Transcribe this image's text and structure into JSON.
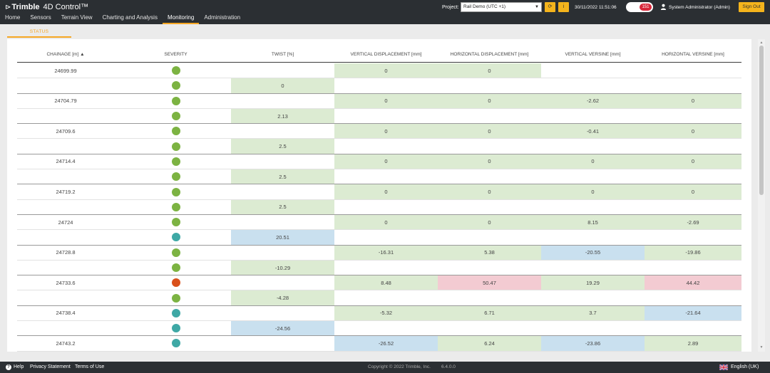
{
  "app": {
    "logo_mark": "⊳",
    "brand": "Trimble",
    "product": "4D Control™"
  },
  "nav": [
    {
      "label": "Home",
      "active": false
    },
    {
      "label": "Sensors",
      "active": false
    },
    {
      "label": "Terrain View",
      "active": false
    },
    {
      "label": "Charting and Analysis",
      "active": false
    },
    {
      "label": "Monitoring",
      "active": true
    },
    {
      "label": "Administration",
      "active": false
    }
  ],
  "header": {
    "project_label": "Project:",
    "project_value": "Rail Demo (UTC +1)",
    "refresh_icon": "⟳",
    "info_icon": "i",
    "datetime": "30/11/2022 11:51:06",
    "alarm_count": "151",
    "user_name": "System Administrator (Admin)",
    "signout_label": "Sign Out"
  },
  "subtab": {
    "label": "STATUS"
  },
  "table": {
    "columns": [
      "CHAINAGE [m] ▲",
      "SEVERITY",
      "TWIST [%]",
      "VERTICAL DISPLACEMENT [mm]",
      "HORIZONTAL DISPLACEMENT [mm]",
      "VERTICAL VERSINE [mm]",
      "HORIZONTAL VERSINE [mm]"
    ],
    "rows": [
      {
        "chainage": "24699.99",
        "severity": "green",
        "twist": "",
        "vd": "0",
        "vd_c": "g",
        "hd": "0",
        "hd_c": "g",
        "vv": "",
        "vv_c": "",
        "hv": "",
        "hv_c": ""
      },
      {
        "chainage": "",
        "severity": "green",
        "twist": "0",
        "twist_c": "g",
        "vd": "",
        "hd": "",
        "vv": "",
        "hv": ""
      },
      {
        "chainage": "24704.79",
        "severity": "green",
        "twist": "",
        "vd": "0",
        "vd_c": "g",
        "hd": "0",
        "hd_c": "g",
        "vv": "-2.62",
        "vv_c": "g",
        "hv": "0",
        "hv_c": "g"
      },
      {
        "chainage": "",
        "severity": "green",
        "twist": "2.13",
        "twist_c": "g",
        "vd": "",
        "hd": "",
        "vv": "",
        "hv": ""
      },
      {
        "chainage": "24709.6",
        "severity": "green",
        "twist": "",
        "vd": "0",
        "vd_c": "g",
        "hd": "0",
        "hd_c": "g",
        "vv": "-0.41",
        "vv_c": "g",
        "hv": "0",
        "hv_c": "g"
      },
      {
        "chainage": "",
        "severity": "green",
        "twist": "2.5",
        "twist_c": "g",
        "vd": "",
        "hd": "",
        "vv": "",
        "hv": ""
      },
      {
        "chainage": "24714.4",
        "severity": "green",
        "twist": "",
        "vd": "0",
        "vd_c": "g",
        "hd": "0",
        "hd_c": "g",
        "vv": "0",
        "vv_c": "g",
        "hv": "0",
        "hv_c": "g"
      },
      {
        "chainage": "",
        "severity": "green",
        "twist": "2.5",
        "twist_c": "g",
        "vd": "",
        "hd": "",
        "vv": "",
        "hv": ""
      },
      {
        "chainage": "24719.2",
        "severity": "green",
        "twist": "",
        "vd": "0",
        "vd_c": "g",
        "hd": "0",
        "hd_c": "g",
        "vv": "0",
        "vv_c": "g",
        "hv": "0",
        "hv_c": "g"
      },
      {
        "chainage": "",
        "severity": "green",
        "twist": "2.5",
        "twist_c": "g",
        "vd": "",
        "hd": "",
        "vv": "",
        "hv": ""
      },
      {
        "chainage": "24724",
        "severity": "green",
        "twist": "",
        "vd": "0",
        "vd_c": "g",
        "hd": "0",
        "hd_c": "g",
        "vv": "8.15",
        "vv_c": "g",
        "hv": "-2.69",
        "hv_c": "g"
      },
      {
        "chainage": "",
        "severity": "teal",
        "twist": "20.51",
        "twist_c": "b",
        "vd": "",
        "hd": "",
        "vv": "",
        "hv": ""
      },
      {
        "chainage": "24728.8",
        "severity": "green",
        "twist": "",
        "vd": "-16.31",
        "vd_c": "g",
        "hd": "5.38",
        "hd_c": "g",
        "vv": "-20.55",
        "vv_c": "b",
        "hv": "-19.86",
        "hv_c": "g"
      },
      {
        "chainage": "",
        "severity": "green",
        "twist": "-10.29",
        "twist_c": "g",
        "vd": "",
        "hd": "",
        "vv": "",
        "hv": ""
      },
      {
        "chainage": "24733.6",
        "severity": "red",
        "twist": "",
        "vd": "8.48",
        "vd_c": "g",
        "hd": "50.47",
        "hd_c": "r",
        "vv": "19.29",
        "vv_c": "g",
        "hv": "44.42",
        "hv_c": "r"
      },
      {
        "chainage": "",
        "severity": "green",
        "twist": "-4.28",
        "twist_c": "g",
        "vd": "",
        "hd": "",
        "vv": "",
        "hv": ""
      },
      {
        "chainage": "24738.4",
        "severity": "teal",
        "twist": "",
        "vd": "-5.32",
        "vd_c": "g",
        "hd": "6.71",
        "hd_c": "g",
        "vv": "3.7",
        "vv_c": "g",
        "hv": "-21.64",
        "hv_c": "b"
      },
      {
        "chainage": "",
        "severity": "teal",
        "twist": "-24.56",
        "twist_c": "b",
        "vd": "",
        "hd": "",
        "vv": "",
        "hv": ""
      },
      {
        "chainage": "24743.2",
        "severity": "teal",
        "twist": "",
        "vd": "-26.52",
        "vd_c": "b",
        "hd": "6.24",
        "hd_c": "g",
        "vv": "-23.86",
        "vv_c": "b",
        "hv": "2.89",
        "hv_c": "g"
      }
    ]
  },
  "colors": {
    "green": "#7cb342",
    "teal": "#3ea8a5",
    "red": "#d9501a",
    "accent": "#f5a623",
    "header_bg": "#2b2f33"
  },
  "footer": {
    "help_icon": "?",
    "help": "Help",
    "privacy": "Privacy Statement",
    "terms": "Terms of Use",
    "copyright": "Copyright © 2022 Trimble, Inc.",
    "version": "6.4.0.0",
    "language": "English (UK)"
  }
}
